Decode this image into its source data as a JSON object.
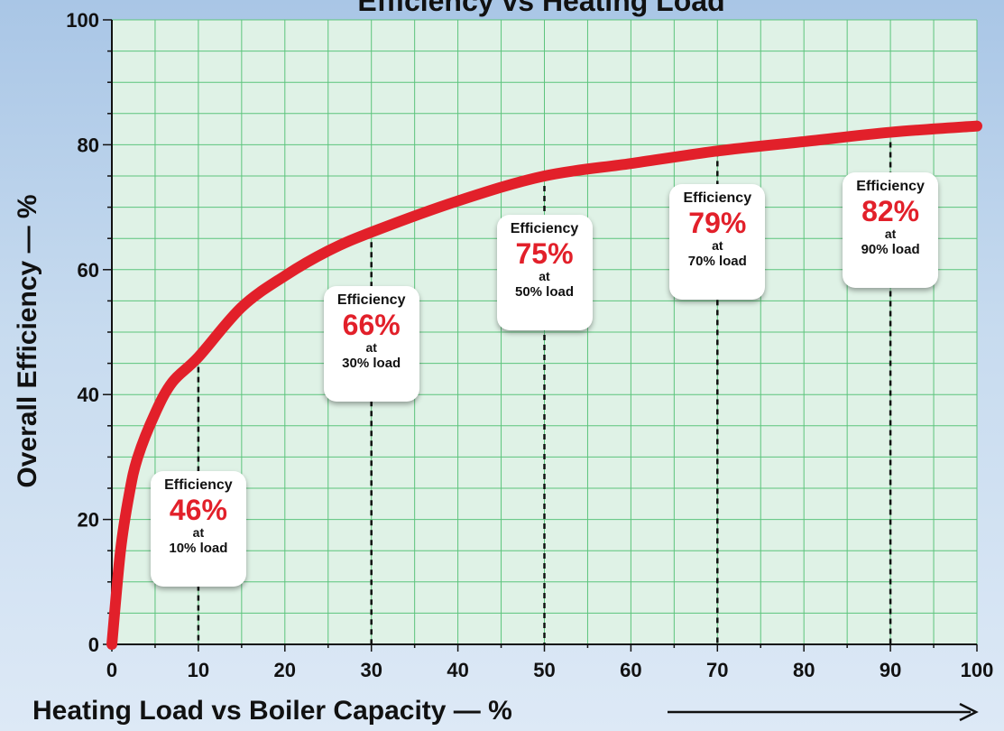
{
  "chart_data": {
    "type": "line",
    "title": "Efficiency vs Heating Load",
    "xlabel": "Heating Load vs Boiler Capacity — %",
    "ylabel": "Overall Efficiency — %",
    "xlim": [
      0,
      100
    ],
    "ylim": [
      0,
      100
    ],
    "x_ticks": [
      "0",
      "10",
      "20",
      "30",
      "40",
      "50",
      "60",
      "70",
      "80",
      "90",
      "100"
    ],
    "y_ticks": [
      "0",
      "20",
      "40",
      "60",
      "80",
      "100"
    ],
    "grid": true,
    "series": [
      {
        "color": "#e2202a",
        "x": [
          0,
          1,
          2,
          3,
          5,
          7,
          10,
          15,
          20,
          25,
          30,
          40,
          50,
          60,
          70,
          80,
          90,
          100
        ],
        "y": [
          0,
          15,
          24,
          30,
          37,
          42,
          46,
          54,
          59,
          63,
          66,
          71,
          75,
          77,
          79,
          80.5,
          82,
          83
        ]
      }
    ],
    "annotations": [
      {
        "x": 10,
        "y": 46,
        "head": "Efficiency",
        "value": "46%",
        "at": "at",
        "load": "10% load"
      },
      {
        "x": 30,
        "y": 66,
        "head": "Efficiency",
        "value": "66%",
        "at": "at",
        "load": "30% load"
      },
      {
        "x": 50,
        "y": 75,
        "head": "Efficiency",
        "value": "75%",
        "at": "at",
        "load": "50% load"
      },
      {
        "x": 70,
        "y": 79,
        "head": "Efficiency",
        "value": "79%",
        "at": "at",
        "load": "70% load"
      },
      {
        "x": 90,
        "y": 82,
        "head": "Efficiency",
        "value": "82%",
        "at": "at",
        "load": "90% load"
      }
    ],
    "colors": {
      "plot_bg": "#dff2e6",
      "grid": "#5cc47c",
      "curve": "#e2202a",
      "value_text": "#e2202a"
    }
  }
}
